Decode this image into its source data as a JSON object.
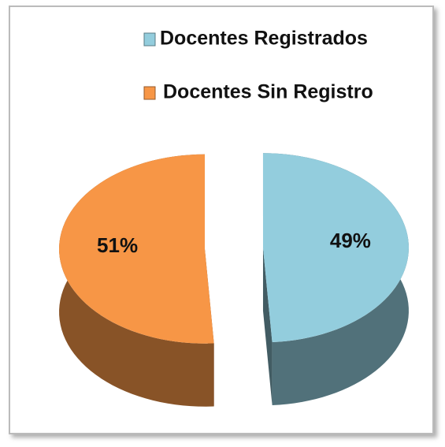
{
  "chart_data": {
    "type": "pie",
    "categories": [
      "Docentes Registrados",
      "Docentes Sin Registro"
    ],
    "values": [
      49,
      51
    ],
    "value_labels": [
      "49%",
      "51%"
    ],
    "colors": [
      "#93cddd",
      "#f79646"
    ],
    "legend": "top"
  }
}
